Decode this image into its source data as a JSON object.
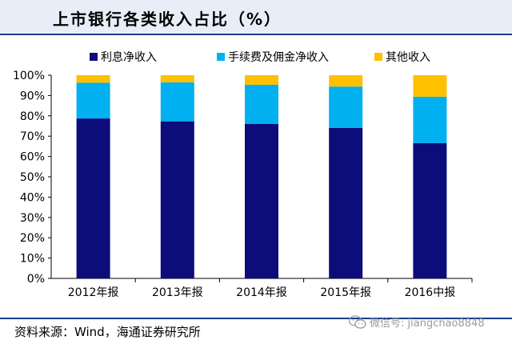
{
  "header": {
    "title": "上市银行各类收入占比（%）"
  },
  "source": {
    "text": "资料来源：Wind，海通证券研究所"
  },
  "watermark": {
    "text": "微信号: jiangchao8848",
    "icon": "wechat-icon"
  },
  "colors": {
    "series_1": "#0c0c7a",
    "series_2": "#00b0f0",
    "series_3": "#ffc000",
    "accent_rule": "#1a3d8f"
  },
  "chart_data": {
    "type": "bar",
    "stacked": true,
    "categories": [
      "2012年报",
      "2013年报",
      "2014年报",
      "2015年报",
      "2016中报"
    ],
    "series": [
      {
        "name": "利息净收入",
        "values": [
          78.7,
          77.3,
          76.0,
          74.1,
          66.6
        ],
        "color": "#0c0c7a"
      },
      {
        "name": "手续费及佣金净收入",
        "values": [
          17.6,
          19.2,
          19.3,
          20.3,
          22.8
        ],
        "color": "#00b0f0"
      },
      {
        "name": "其他收入",
        "values": [
          3.7,
          3.5,
          4.7,
          5.6,
          10.6
        ],
        "color": "#ffc000"
      }
    ],
    "ylim": [
      0,
      100
    ],
    "yticks": [
      "0%",
      "10%",
      "20%",
      "30%",
      "40%",
      "50%",
      "60%",
      "70%",
      "80%",
      "90%",
      "100%"
    ],
    "legend_position": "top",
    "grid": false
  }
}
